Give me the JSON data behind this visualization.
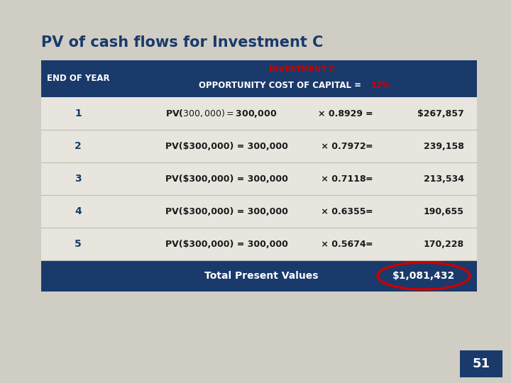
{
  "title": "PV of cash flows for Investment C",
  "title_color": "#1a3a6b",
  "background_color": "#d0cdc4",
  "header_bg": "#1a3a6b",
  "header_text_main": "INVESTMENT C",
  "header_text_main_color": "#cc0000",
  "header_text_sub": "OPPORTUNITY COST OF CAPITAL = ",
  "header_text_sub_color": "#ffffff",
  "header_percent": "12%",
  "header_percent_color": "#cc0000",
  "header_left": "END OF YEAR",
  "rows": [
    {
      "year": "1",
      "part1": "PV($300,000) = $300,000",
      "factor": "× 0.8929",
      "eq": "=",
      "result": "$267,857"
    },
    {
      "year": "2",
      "part1": "PV($300,000) = 300,000",
      "factor": " × 0.7972",
      "eq": "=",
      "result": "239,158"
    },
    {
      "year": "3",
      "part1": "PV($300,000) = 300,000",
      "factor": " × 0.7118",
      "eq": "=",
      "result": "213,534"
    },
    {
      "year": "4",
      "part1": "PV($300,000) = 300,000",
      "factor": " × 0.6355",
      "eq": "=",
      "result": "190,655"
    },
    {
      "year": "5",
      "part1": "PV($300,000) = 300,000",
      "factor": " × 0.5674",
      "eq": "=",
      "result": "170,228"
    }
  ],
  "footer_bg": "#1a3a6b",
  "footer_label": "Total Present Values",
  "footer_label_color": "#ffffff",
  "footer_value": "$1,081,432",
  "footer_value_color": "#ffffff",
  "ellipse_color": "#cc0000",
  "page_number": "51",
  "page_bg": "#1a3a6b",
  "page_color": "#ffffff",
  "row_sep_color": "#c0bdb5",
  "row_bg": "#e8e5de"
}
